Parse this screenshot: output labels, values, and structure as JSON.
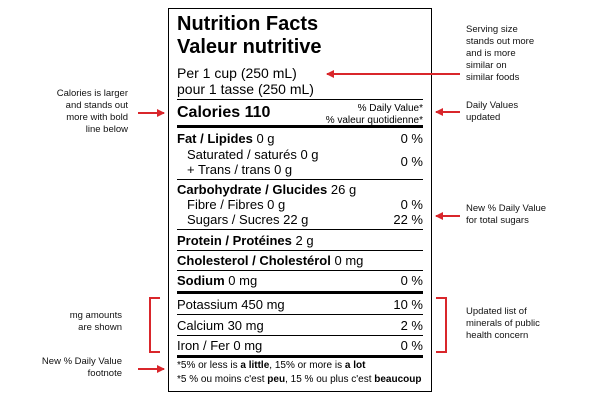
{
  "label": {
    "title_en": "Nutrition Facts",
    "title_fr": "Valeur nutritive",
    "serving_en": "Per 1 cup (250 mL)",
    "serving_fr": "pour 1 tasse (250 mL)",
    "calories": "Calories 110",
    "dv_header_en": "% Daily Value*",
    "dv_header_fr": "% valeur quotidienne*",
    "fat": {
      "name": "Fat / Lipides",
      "amount": "0 g",
      "dv": "0 %"
    },
    "saturated": {
      "name": "Saturated / saturés 0 g",
      "trans": "+ Trans / trans 0 g",
      "dv": "0 %"
    },
    "carbohydrate": {
      "name": "Carbohydrate / Glucides",
      "amount": "26 g"
    },
    "fibre": {
      "name": "Fibre / Fibres 0 g",
      "dv": "0 %"
    },
    "sugars": {
      "name": "Sugars / Sucres 22 g",
      "dv": "22 %"
    },
    "protein": {
      "name": "Protein / Protéines",
      "amount": "2 g"
    },
    "cholesterol": {
      "name": "Cholesterol / Cholestérol",
      "amount": "0 mg"
    },
    "sodium": {
      "name": "Sodium",
      "amount": "0 mg",
      "dv": "0 %"
    },
    "potassium": {
      "name": "Potassium 450 mg",
      "dv": "10 %"
    },
    "calcium": {
      "name": "Calcium 30 mg",
      "dv": "2 %"
    },
    "iron": {
      "name": "Iron / Fer 0 mg",
      "dv": "0 %"
    },
    "footnote_en": [
      "*5% or less is ",
      "a little",
      ", 15% or more is ",
      "a lot"
    ],
    "footnote_fr": [
      "*5 % ou moins c'est ",
      "peu",
      ", 15 % ou plus c'est ",
      "beaucoup"
    ]
  },
  "annotations": {
    "serving": [
      "Serving size",
      "stands out more",
      "and is more",
      "similar on",
      "similar foods"
    ],
    "calories": [
      "Calories is larger",
      "and stands out",
      "more with bold",
      "line below"
    ],
    "daily_values": [
      "Daily Values",
      "updated"
    ],
    "sugars": [
      "New % Daily Value",
      "for total sugars"
    ],
    "mg": [
      "mg amounts",
      "are shown"
    ],
    "minerals": [
      "Updated list of",
      "minerals of public",
      "health concern"
    ],
    "footnote": [
      "New % Daily Value",
      "footnote"
    ]
  }
}
